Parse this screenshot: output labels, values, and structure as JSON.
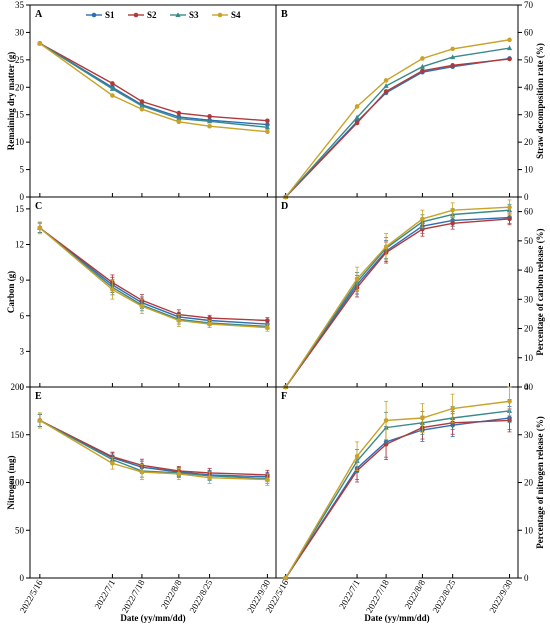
{
  "figure": {
    "x_axis_title": "Date (yy/mm/dd)",
    "x_tick_labels": [
      "2022/5/16",
      "2022/7/1",
      "2022/7/18",
      "2022/8/8",
      "2022/8/25",
      "2022/9/30"
    ],
    "legend_placement": "top, inside panel A",
    "grid": false
  },
  "series_styles": [
    {
      "name": "S1",
      "color": "#2f6db5",
      "marker": "circle"
    },
    {
      "name": "S2",
      "color": "#b03a3a",
      "marker": "circle"
    },
    {
      "name": "S3",
      "color": "#3a8a8a",
      "marker": "triangle"
    },
    {
      "name": "S4",
      "color": "#c9a227",
      "marker": "circle"
    }
  ],
  "chart_data": [
    {
      "panel": "A",
      "type": "line",
      "x": [
        "2022/5/16",
        "2022/7/1",
        "2022/7/18",
        "2022/8/8",
        "2022/8/25",
        "2022/9/30"
      ],
      "ylabel": "Remaining dry matter (g)",
      "ylim": [
        0,
        35
      ],
      "yticks": [
        0,
        5,
        10,
        15,
        20,
        25,
        30,
        35
      ],
      "axis_side": "left",
      "series": [
        {
          "name": "S1",
          "values": [
            28,
            20.0,
            16.8,
            14.6,
            14.0,
            13.2
          ]
        },
        {
          "name": "S2",
          "values": [
            28,
            20.7,
            17.4,
            15.3,
            14.7,
            13.9
          ]
        },
        {
          "name": "S3",
          "values": [
            28,
            19.7,
            16.6,
            14.3,
            13.8,
            12.7
          ]
        },
        {
          "name": "S4",
          "values": [
            28,
            18.5,
            16.0,
            13.7,
            12.9,
            11.9
          ]
        }
      ]
    },
    {
      "panel": "B",
      "type": "line",
      "x": [
        "2022/5/16",
        "2022/7/1",
        "2022/7/18",
        "2022/8/8",
        "2022/8/25",
        "2022/9/30"
      ],
      "ylabel": "Straw decomposition rate (%)",
      "ylim": [
        0,
        70
      ],
      "yticks": [
        0,
        10,
        20,
        30,
        40,
        50,
        60,
        70
      ],
      "axis_side": "right",
      "series": [
        {
          "name": "S1",
          "values": [
            0,
            27.5,
            38.0,
            45.5,
            47.5,
            50.5
          ]
        },
        {
          "name": "S2",
          "values": [
            0,
            27.0,
            38.5,
            46.0,
            48.0,
            50.3
          ]
        },
        {
          "name": "S3",
          "values": [
            0,
            29.0,
            40.5,
            47.5,
            51.0,
            54.3
          ]
        },
        {
          "name": "S4",
          "values": [
            0,
            33.0,
            42.5,
            50.5,
            54.0,
            57.3
          ]
        }
      ]
    },
    {
      "panel": "C",
      "type": "line",
      "x": [
        "2022/5/16",
        "2022/7/1",
        "2022/7/18",
        "2022/8/8",
        "2022/8/25",
        "2022/9/30"
      ],
      "ylabel": "Carbon (g)",
      "ylim": [
        0,
        16
      ],
      "yticks": [
        0,
        3,
        6,
        9,
        12,
        15
      ],
      "axis_side": "left",
      "series": [
        {
          "name": "S1",
          "values": [
            13.4,
            8.6,
            7.1,
            5.9,
            5.6,
            5.3
          ]
        },
        {
          "name": "S2",
          "values": [
            13.4,
            8.8,
            7.3,
            6.1,
            5.8,
            5.6
          ]
        },
        {
          "name": "S3",
          "values": [
            13.4,
            8.4,
            6.9,
            5.7,
            5.4,
            5.1
          ]
        },
        {
          "name": "S4",
          "values": [
            13.4,
            8.2,
            6.8,
            5.6,
            5.3,
            5.0
          ]
        }
      ],
      "error": [
        0.5,
        0.8,
        0.6,
        0.5,
        0.3,
        0.3
      ]
    },
    {
      "panel": "D",
      "type": "line",
      "x": [
        "2022/5/16",
        "2022/7/1",
        "2022/7/18",
        "2022/8/8",
        "2022/8/25",
        "2022/9/30"
      ],
      "ylabel": "Percentage of  carbon release (%)",
      "ylim": [
        0,
        65
      ],
      "yticks": [
        0,
        10,
        20,
        30,
        40,
        50,
        60
      ],
      "axis_side": "right",
      "series": [
        {
          "name": "S1",
          "values": [
            0,
            35.0,
            46.5,
            55.0,
            57.0,
            58.0
          ]
        },
        {
          "name": "S2",
          "values": [
            0,
            34.0,
            46.0,
            54.0,
            56.0,
            57.5
          ]
        },
        {
          "name": "S3",
          "values": [
            0,
            36.0,
            47.5,
            56.5,
            59.0,
            60.5
          ]
        },
        {
          "name": "S4",
          "values": [
            0,
            37.0,
            48.0,
            57.5,
            60.5,
            61.5
          ]
        }
      ],
      "error": [
        0,
        4.0,
        4.5,
        3.0,
        2.5,
        2.5
      ]
    },
    {
      "panel": "E",
      "type": "line",
      "x": [
        "2022/5/16",
        "2022/7/1",
        "2022/7/18",
        "2022/8/8",
        "2022/8/25",
        "2022/9/30"
      ],
      "ylabel": "Nitrogen (mg)",
      "ylim": [
        0,
        200
      ],
      "yticks": [
        0,
        50,
        100,
        150,
        200
      ],
      "axis_side": "left",
      "series": [
        {
          "name": "S1",
          "values": [
            165,
            126,
            116,
            111,
            108,
            106
          ]
        },
        {
          "name": "S2",
          "values": [
            165,
            127,
            118,
            112,
            110,
            108
          ]
        },
        {
          "name": "S3",
          "values": [
            165,
            124,
            112,
            110,
            107,
            104
          ]
        },
        {
          "name": "S4",
          "values": [
            165,
            120,
            111,
            109,
            105,
            103
          ]
        }
      ],
      "error": [
        8,
        6,
        8,
        6,
        6,
        6
      ]
    },
    {
      "panel": "F",
      "type": "line",
      "x": [
        "2022/5/16",
        "2022/7/1",
        "2022/7/18",
        "2022/8/8",
        "2022/8/25",
        "2022/9/30"
      ],
      "ylabel": "Percentage of  nitrogen release (%)",
      "ylim": [
        0,
        40
      ],
      "yticks": [
        0,
        10,
        20,
        30,
        40
      ],
      "axis_side": "right",
      "series": [
        {
          "name": "S1",
          "values": [
            0,
            23.0,
            28.5,
            31.0,
            32.0,
            33.5
          ]
        },
        {
          "name": "S2",
          "values": [
            0,
            22.5,
            28.0,
            31.5,
            32.5,
            33.0
          ]
        },
        {
          "name": "S3",
          "values": [
            0,
            24.5,
            31.5,
            32.5,
            33.5,
            35.0
          ]
        },
        {
          "name": "S4",
          "values": [
            0,
            25.5,
            33.0,
            33.5,
            35.5,
            37.0
          ]
        }
      ],
      "error": [
        0,
        3,
        4,
        3,
        3,
        3
      ]
    }
  ]
}
